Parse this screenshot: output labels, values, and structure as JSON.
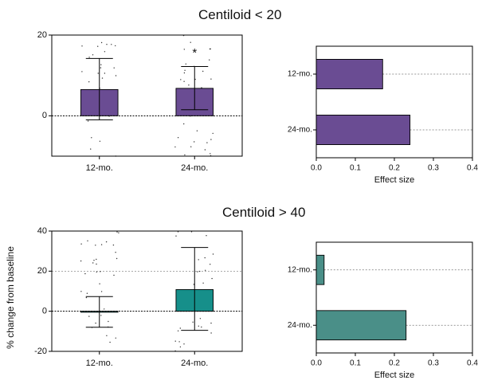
{
  "colors": {
    "purple": "#6a4c93",
    "teal": "#168f8a",
    "teal_effect": "#4a8f88",
    "axis": "#000000",
    "grid": "#777777"
  },
  "titles": {
    "top": "Centiloid <  20",
    "bottom": "Centiloid >  40"
  },
  "chart_data": [
    {
      "type": "bar",
      "panel": "top-left",
      "categories": [
        "12-mo.",
        "24-mo."
      ],
      "values": [
        6.5,
        6.8
      ],
      "error_low": [
        -1.0,
        1.5
      ],
      "error_high": [
        14.2,
        12.2
      ],
      "ylim": [
        -10,
        20
      ],
      "yticks": [
        "20",
        "0"
      ],
      "ytick_values": [
        20,
        0
      ],
      "ylabel": "",
      "xlabel": "",
      "annotation": "*",
      "annotation_category": "24-mo.",
      "annotation_y": 16.2,
      "reference_line": 0,
      "color": "#6a4c93"
    },
    {
      "type": "bar",
      "orientation": "horizontal",
      "panel": "top-right",
      "categories": [
        "12-mo.",
        "24-mo."
      ],
      "values": [
        0.17,
        0.24
      ],
      "xlim": [
        0,
        0.4
      ],
      "xticks": [
        "0.0",
        "0.1",
        "0.2",
        "0.3",
        "0.4"
      ],
      "xtick_values": [
        0,
        0.1,
        0.2,
        0.3,
        0.4
      ],
      "xlabel": "Effect size",
      "color": "#6a4c93"
    },
    {
      "type": "bar",
      "panel": "bottom-left",
      "categories": [
        "12-mo.",
        "24-mo."
      ],
      "values": [
        -0.3,
        10.8
      ],
      "error_low": [
        -8.0,
        -9.5
      ],
      "error_high": [
        7.3,
        31.8
      ],
      "ylim": [
        -20,
        40
      ],
      "yticks": [
        "40",
        "20",
        "0",
        "-20"
      ],
      "ytick_values": [
        40,
        20,
        0,
        -20
      ],
      "ylabel": "% change from baseline",
      "xlabel": "",
      "reference_line": 0,
      "grid_y": [
        20
      ],
      "color": "#168f8a"
    },
    {
      "type": "bar",
      "orientation": "horizontal",
      "panel": "bottom-right",
      "categories": [
        "12-mo.",
        "24-mo."
      ],
      "values": [
        0.02,
        0.23
      ],
      "xlim": [
        0,
        0.4
      ],
      "xticks": [
        "0.0",
        "0.1",
        "0.2",
        "0.3",
        "0.4"
      ],
      "xtick_values": [
        0,
        0.1,
        0.2,
        0.3,
        0.4
      ],
      "xlabel": "Effect size",
      "color": "#4a8f88"
    }
  ]
}
